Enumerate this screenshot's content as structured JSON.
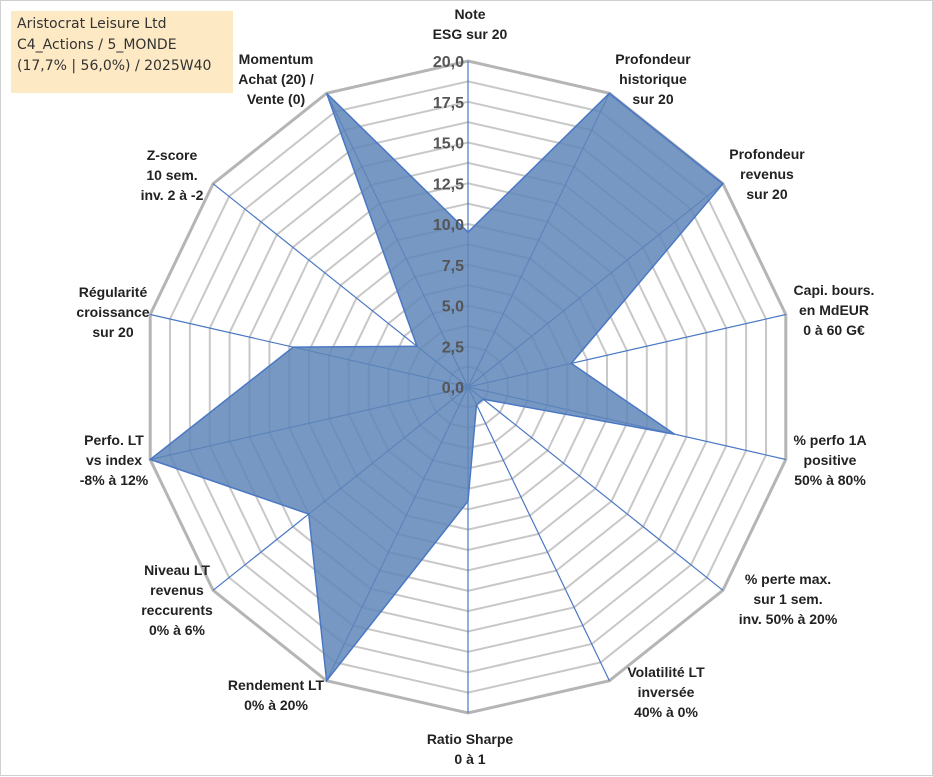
{
  "info": {
    "line1": "Aristocrat Leisure Ltd",
    "line2": "C4_Actions / 5_MONDE",
    "line3": "(17,7% | 56,0%) / 2025W40"
  },
  "chart_data": {
    "type": "radar",
    "title": "",
    "rmin": 0,
    "rmax": 20,
    "ticks": [
      "0,0",
      "2,5",
      "5,0",
      "7,5",
      "10,0",
      "12,5",
      "15,0",
      "17,5",
      "20,0"
    ],
    "tick_values": [
      0,
      2.5,
      5,
      7.5,
      10,
      12.5,
      15,
      17.5,
      20
    ],
    "grid": true,
    "colors": {
      "fill": "#5f86b8",
      "stroke": "#4a78c4",
      "grid": "#bdbdbd",
      "spoke": "#4a78c4"
    },
    "axes": [
      {
        "label": [
          "Note",
          "ESG sur 20"
        ],
        "value": 9.5
      },
      {
        "label": [
          "Profondeur",
          "historique",
          "sur 20"
        ],
        "value": 20
      },
      {
        "label": [
          "Profondeur",
          "revenus",
          "sur 20"
        ],
        "value": 20
      },
      {
        "label": [
          "Capi. bours.",
          "en MdEUR",
          "0 à 60 G€"
        ],
        "value": 6.5
      },
      {
        "label": [
          "% perfo 1A",
          "positive",
          "50% à 80%"
        ],
        "value": 13.0
      },
      {
        "label": [
          "% perte max.",
          "sur 1 sem.",
          "inv. 50% à 20%"
        ],
        "value": 1.2
      },
      {
        "label": [
          "Volatilité LT",
          "inversée",
          "40% à 0%"
        ],
        "value": 1.2
      },
      {
        "label": [
          "Ratio Sharpe",
          "0 à 1"
        ],
        "value": 7.0
      },
      {
        "label": [
          "Rendement LT",
          "0% à 20%"
        ],
        "value": 20
      },
      {
        "label": [
          "Niveau LT",
          "revenus",
          "reccurents",
          "0% à 6%"
        ],
        "value": 12.5
      },
      {
        "label": [
          "Perfo. LT",
          "vs index",
          "-8% à 12%"
        ],
        "value": 20
      },
      {
        "label": [
          "Régularité",
          "croissance",
          "sur 20"
        ],
        "value": 11.0
      },
      {
        "label": [
          "Z-score",
          "10 sem.",
          "inv. 2 à -2"
        ],
        "value": 4.0
      },
      {
        "label": [
          "Momentum",
          "Achat (20) /",
          "Vente (0)"
        ],
        "value": 20
      }
    ]
  }
}
